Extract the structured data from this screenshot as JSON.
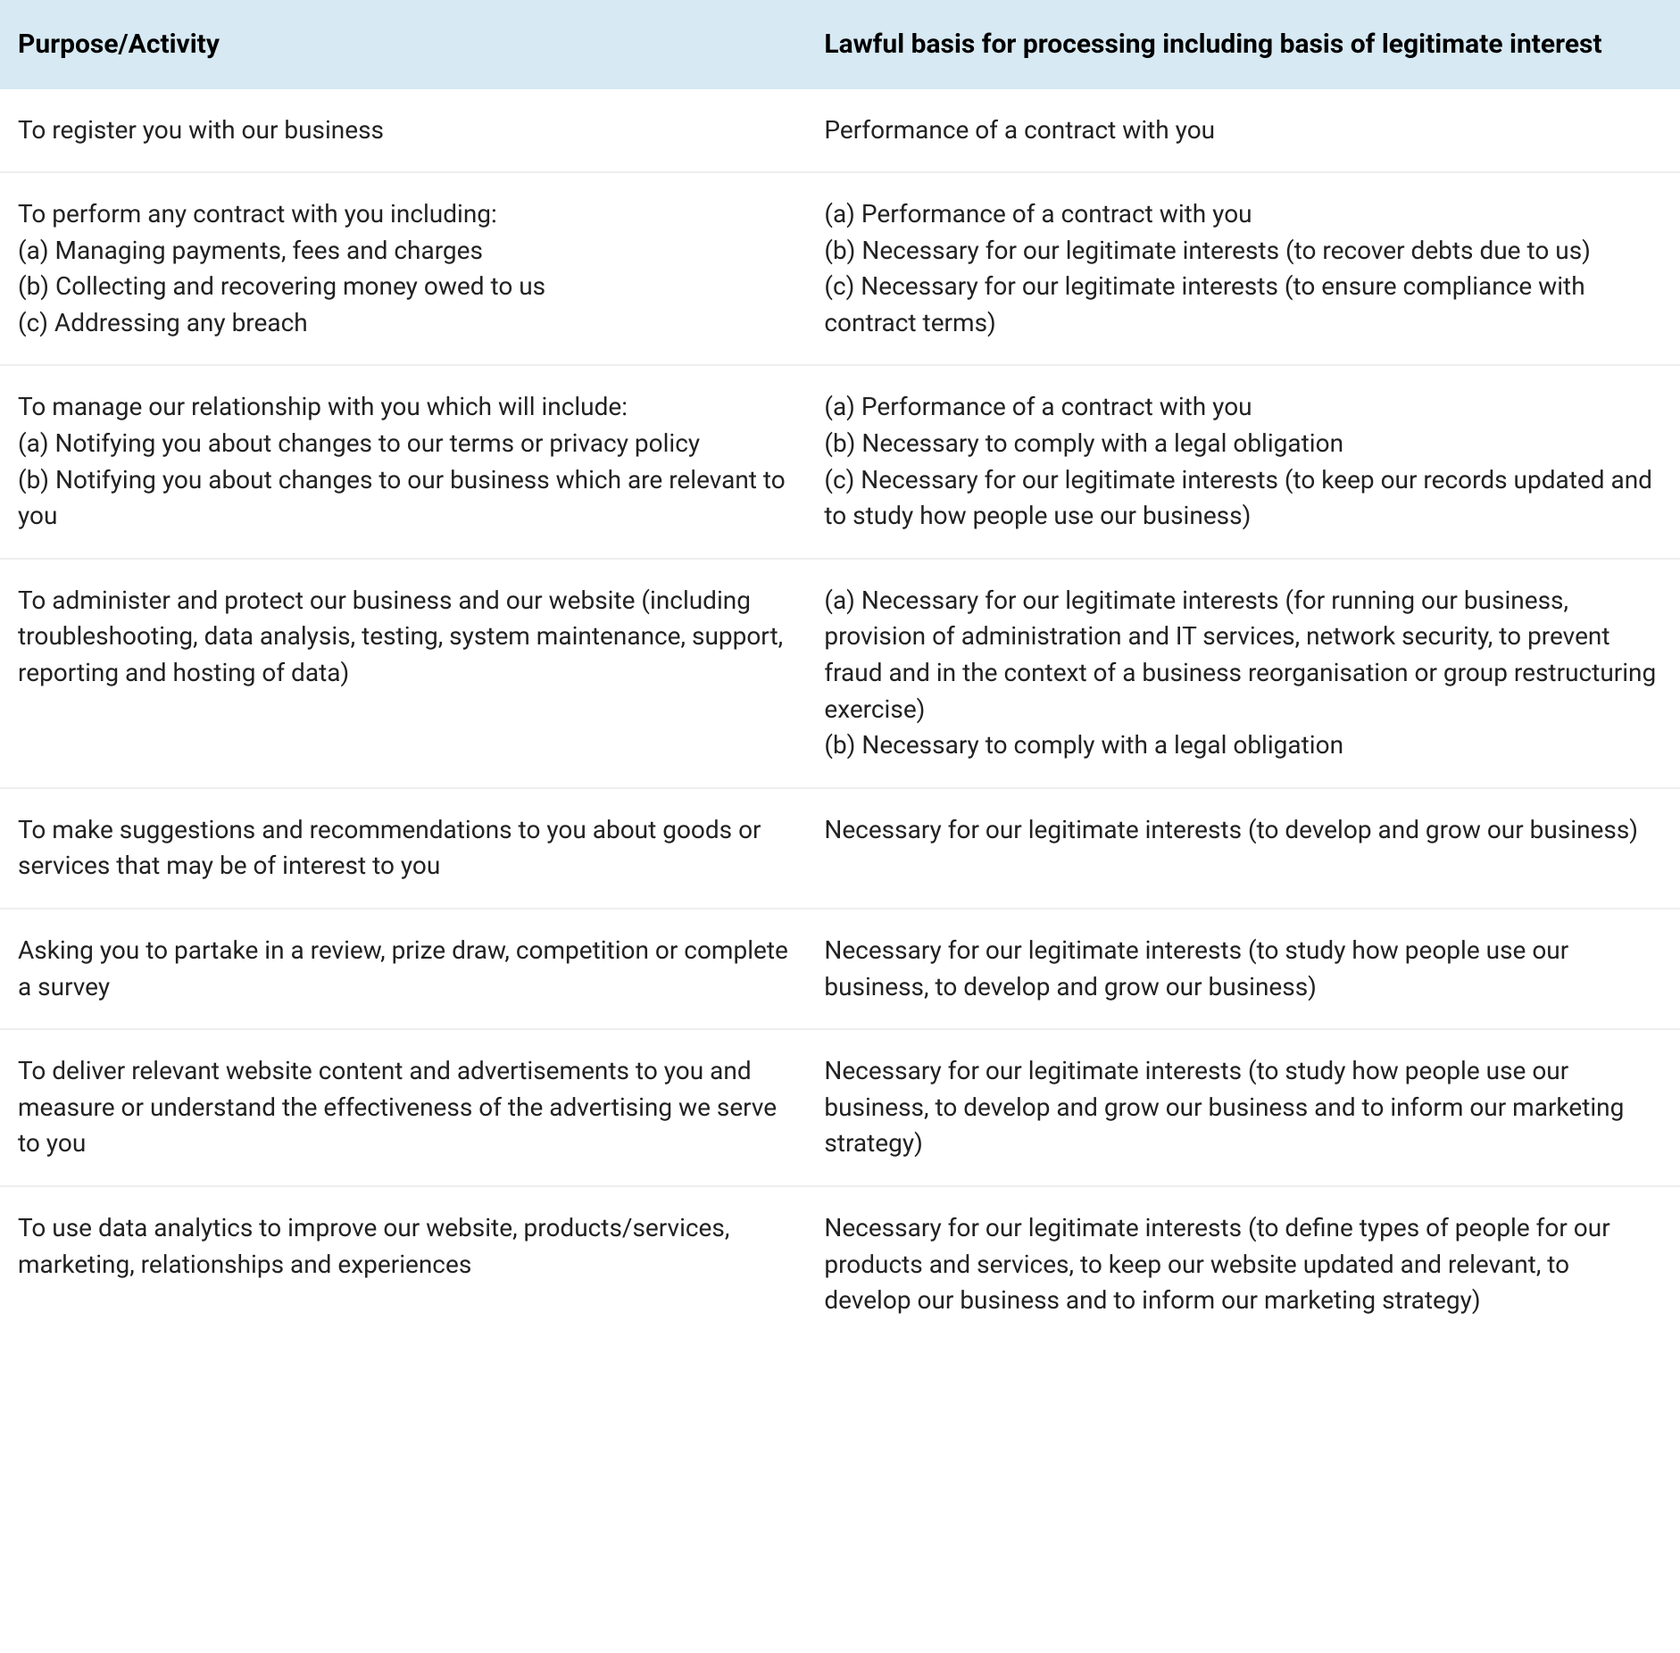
{
  "table": {
    "headers": {
      "col1": "Purpose/Activity",
      "col2": "Lawful basis for processing including basis of legitimate interest"
    },
    "rows": [
      {
        "purpose": "To register you with our business",
        "basis": "Performance of a contract with you"
      },
      {
        "purpose": "To perform any contract with you including:\n(a) Managing payments, fees and charges\n(b) Collecting and recovering money owed to us\n(c) Addressing any breach",
        "basis": "(a) Performance of a contract with you\n(b) Necessary for our legitimate interests (to recover debts due to us)\n(c) Necessary for our legitimate interests (to ensure compliance with contract terms)"
      },
      {
        "purpose": "To manage our relationship with you which will include:\n(a) Notifying you about changes to our terms or privacy policy\n(b) Notifying you about changes to our business which are relevant to you",
        "basis": "(a) Performance of a contract with you\n(b) Necessary to comply with a legal obligation\n(c) Necessary for our legitimate interests (to keep our records updated and to study how people use our business)"
      },
      {
        "purpose": "To administer and protect our business and our website (including troubleshooting, data analysis, testing, system maintenance, support, reporting and hosting of data)",
        "basis": "(a) Necessary for our legitimate interests (for running our business, provision of administration and IT services, network security, to prevent fraud and in the context of a business reorganisation or group restructuring exercise)\n(b) Necessary to comply with a legal obligation"
      },
      {
        "purpose": "To make suggestions and recommendations to you about goods or services that may be of interest to you",
        "basis": "Necessary for our legitimate interests (to develop and grow our business)"
      },
      {
        "purpose": "Asking you to partake in a review, prize draw, competition or complete a survey",
        "basis": "Necessary for our legitimate interests (to study how people use our business, to develop and grow our business)"
      },
      {
        "purpose": "To deliver relevant website content and advertisements to you and measure or understand the effectiveness of the advertising we serve to you",
        "basis": "Necessary for our legitimate interests (to study how people use our business, to develop and grow our business and to inform our marketing strategy)"
      },
      {
        "purpose": "To use data analytics to improve our website, products/services, marketing, relationships and experiences",
        "basis": "Necessary for our legitimate interests (to define types of people for our products and services, to keep our website updated and relevant, to develop our business and to inform our marketing strategy)"
      }
    ]
  },
  "style": {
    "header_bg": "#d7e9f2",
    "row_border": "#eeeeee",
    "text_color": "#222222",
    "header_text_color": "#000000",
    "body_bg": "#ffffff",
    "font_size_body": 28,
    "font_size_header": 30
  }
}
